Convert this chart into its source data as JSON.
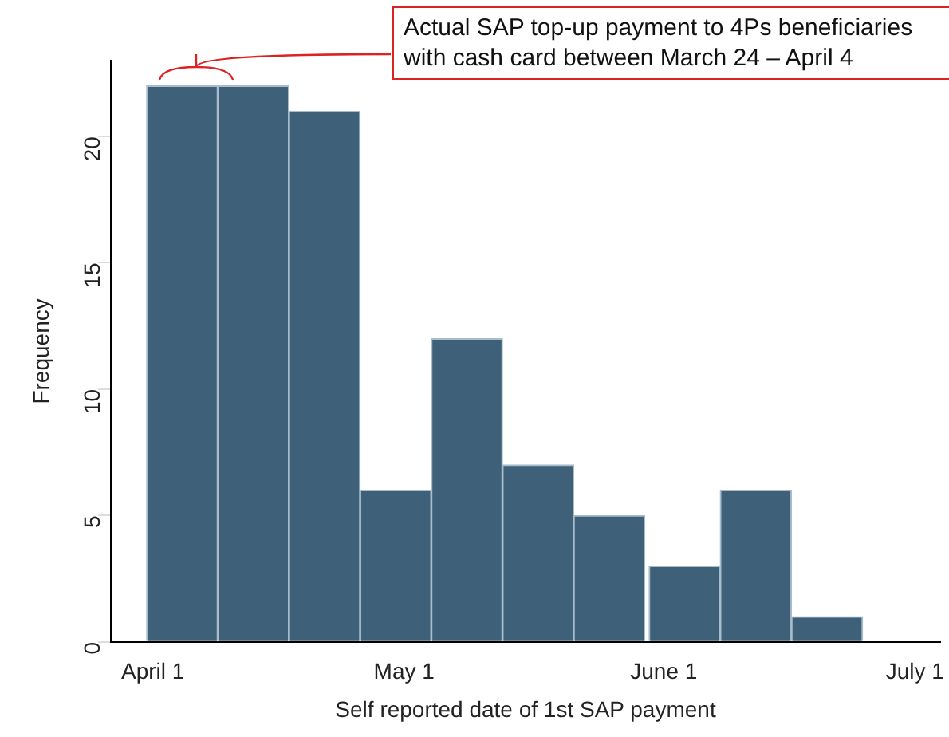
{
  "chart_data": {
    "type": "histogram",
    "xlabel": "Self reported date of 1st SAP payment",
    "ylabel": "Frequency",
    "bins": [
      "--03-31",
      "--04-09",
      "--04-17",
      "--04-26",
      "--05-04",
      "--05-13",
      "--05-21",
      "--05-30",
      "--06-08",
      "--06-16",
      "--06-25"
    ],
    "values": [
      22,
      22,
      21,
      6,
      12,
      7,
      5,
      3,
      6,
      1
    ],
    "color": "#3e6179",
    "xlim": [
      "--03-27",
      "--07-04"
    ],
    "xticks": [
      {
        "value": "--04-01",
        "label": "April 1"
      },
      {
        "value": "--05-01",
        "label": "May 1"
      },
      {
        "value": "--06-01",
        "label": "June 1"
      },
      {
        "value": "--07-01",
        "label": "July 1"
      }
    ],
    "ylim": [
      0,
      23
    ],
    "yticks": [
      0,
      5,
      10,
      15,
      20
    ],
    "grid": false,
    "legend": false,
    "annotations": [
      "Actual SAP top-up payment to 4Ps beneficiaries with cash card between March 24 – April 4"
    ]
  }
}
